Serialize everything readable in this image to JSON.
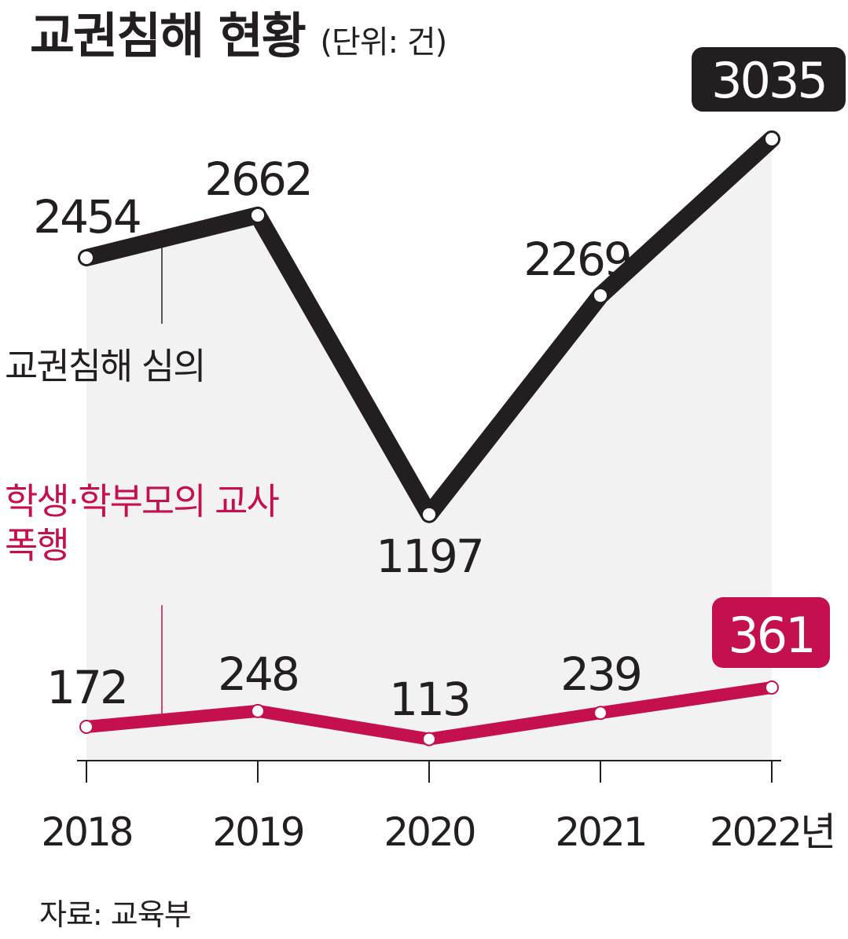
{
  "title": "교권침해 현황",
  "unit": "(단위: 건)",
  "source": "자료: 교육부",
  "colors": {
    "series1": "#231f20",
    "series2": "#c4104e",
    "area": "#f2f2f2",
    "axis": "#231f20"
  },
  "chart_data": {
    "type": "line",
    "categories": [
      "2018",
      "2019",
      "2020",
      "2021",
      "2022년"
    ],
    "series": [
      {
        "name": "교권침해 심의",
        "values": [
          2454,
          2662,
          1197,
          2269,
          3035
        ]
      },
      {
        "name": "학생·학부모의 교사 폭행",
        "values": [
          172,
          248,
          113,
          239,
          361
        ]
      }
    ],
    "highlighted_labels": [
      "3035",
      "361"
    ],
    "grid": false,
    "legend": "inline labels"
  }
}
